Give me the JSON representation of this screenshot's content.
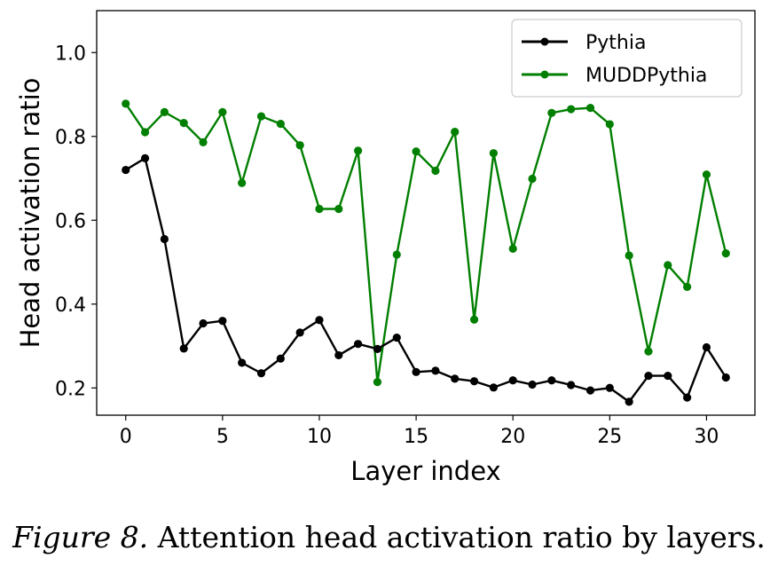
{
  "chart_data": {
    "type": "line",
    "xlabel": "Layer index",
    "ylabel": "Head activation ratio",
    "xlim": [
      -1.5,
      32.5
    ],
    "ylim": [
      0.135,
      1.1
    ],
    "xticks": [
      0,
      5,
      10,
      15,
      20,
      25,
      30
    ],
    "yticks": [
      0.2,
      0.4,
      0.6,
      0.8,
      1.0
    ],
    "ytick_labels": [
      "0.2",
      "0.4",
      "0.6",
      "0.8",
      "1.0"
    ],
    "grid": false,
    "legend_position": "top-right",
    "x": [
      0,
      1,
      2,
      3,
      4,
      5,
      6,
      7,
      8,
      9,
      10,
      11,
      12,
      13,
      14,
      15,
      16,
      17,
      18,
      19,
      20,
      21,
      22,
      23,
      24,
      25,
      26,
      27,
      28,
      29,
      30,
      31
    ],
    "series": [
      {
        "name": "Pythia",
        "color": "#000000",
        "values": [
          0.72,
          0.748,
          0.555,
          0.294,
          0.354,
          0.36,
          0.26,
          0.235,
          0.27,
          0.332,
          0.362,
          0.278,
          0.305,
          0.293,
          0.32,
          0.238,
          0.241,
          0.222,
          0.216,
          0.201,
          0.218,
          0.208,
          0.218,
          0.207,
          0.194,
          0.2,
          0.167,
          0.229,
          0.229,
          0.177,
          0.297,
          0.225
        ]
      },
      {
        "name": "MUDDPythia",
        "color": "#007f00",
        "values": [
          0.878,
          0.81,
          0.858,
          0.832,
          0.786,
          0.858,
          0.689,
          0.848,
          0.83,
          0.779,
          0.627,
          0.627,
          0.766,
          0.214,
          0.518,
          0.764,
          0.718,
          0.811,
          0.363,
          0.76,
          0.532,
          0.699,
          0.856,
          0.865,
          0.868,
          0.829,
          0.516,
          0.287,
          0.493,
          0.441,
          0.709,
          0.521
        ]
      }
    ]
  },
  "caption": {
    "figure_label": "Figure 8.",
    "text": "Attention head activation ratio by layers."
  }
}
